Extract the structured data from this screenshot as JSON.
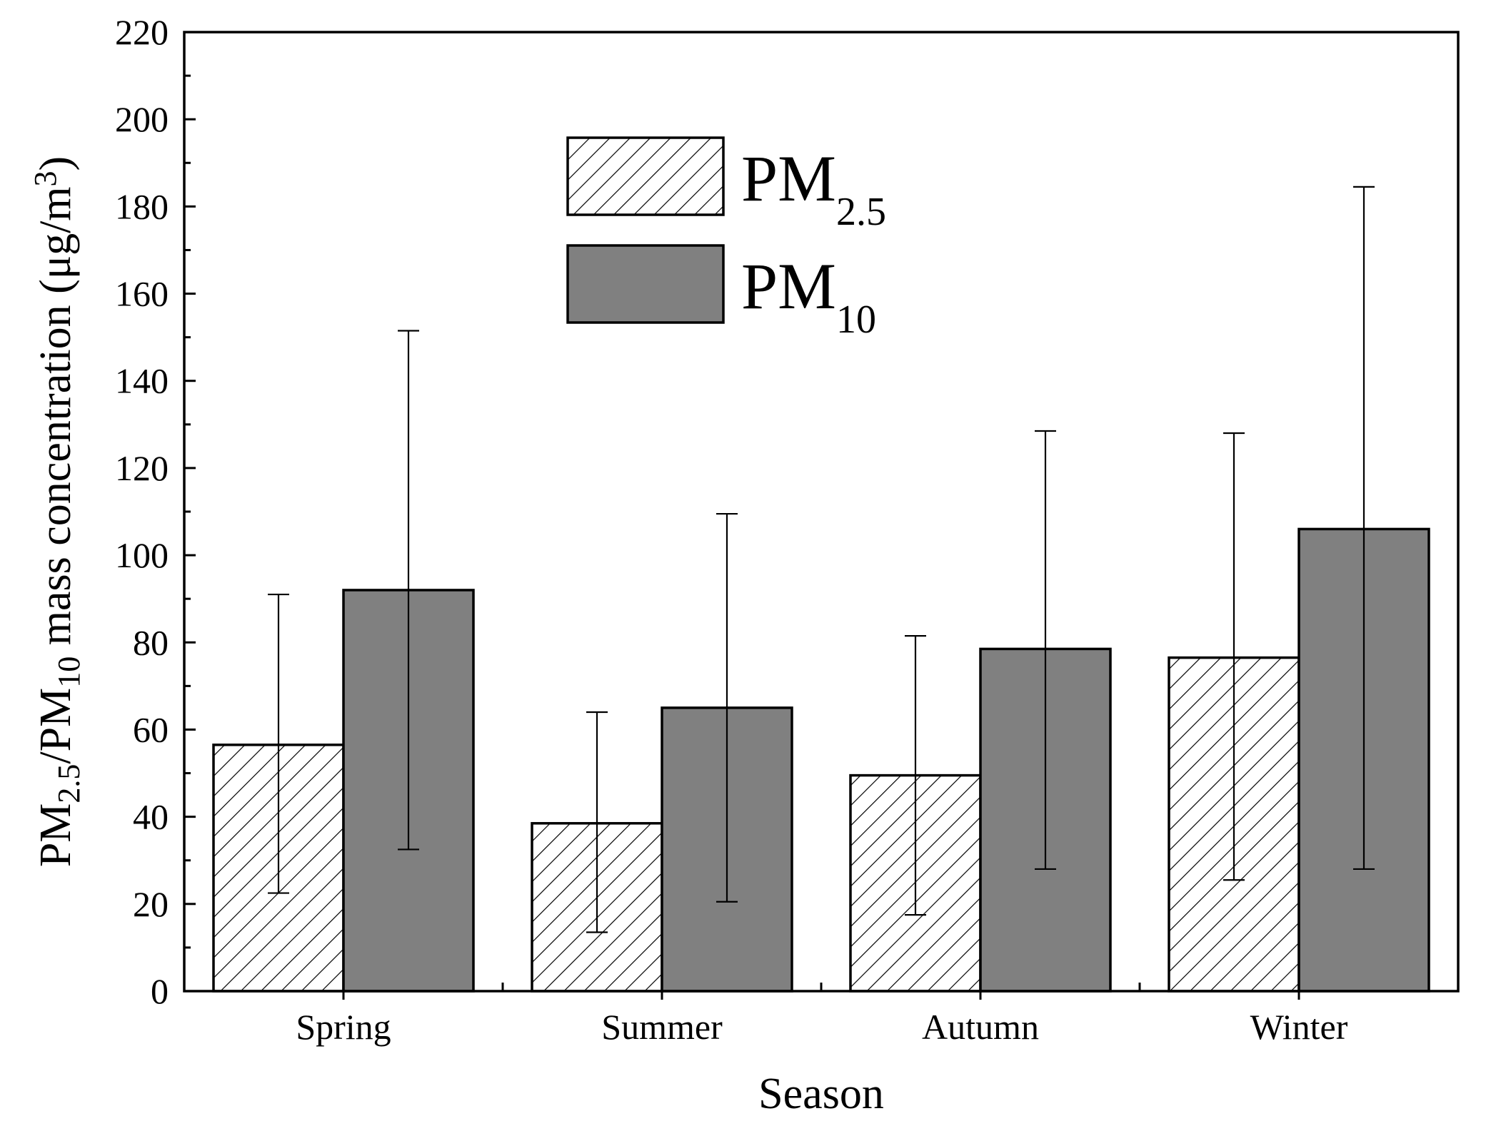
{
  "chart_data": {
    "type": "bar",
    "categories": [
      "Spring",
      "Summer",
      "Autumn",
      "Winter"
    ],
    "series": [
      {
        "name": "PM2.5",
        "legend_main": "PM",
        "legend_sub": "2.5",
        "fill": "hatch",
        "values": [
          56.5,
          38.5,
          49.5,
          76.5
        ],
        "error_low": [
          22.5,
          13.5,
          17.5,
          25.5
        ],
        "error_high": [
          91,
          64,
          81.5,
          128
        ]
      },
      {
        "name": "PM10",
        "legend_main": "PM",
        "legend_sub": "10",
        "fill": "#808080",
        "values": [
          92,
          65,
          78.5,
          106
        ],
        "error_low": [
          32.5,
          20.5,
          28,
          28
        ],
        "error_high": [
          151.5,
          109.5,
          128.5,
          184.5
        ]
      }
    ],
    "xlabel": "Season",
    "ylabel": {
      "parts": [
        {
          "text": "PM",
          "sub": false,
          "sup": false
        },
        {
          "text": "2.5",
          "sub": true,
          "sup": false
        },
        {
          "text": "/PM",
          "sub": false,
          "sup": false
        },
        {
          "text": "10",
          "sub": true,
          "sup": false
        },
        {
          "text": " mass concentration (μg/m",
          "sub": false,
          "sup": false
        },
        {
          "text": "3",
          "sub": false,
          "sup": true
        },
        {
          "text": ")",
          "sub": false,
          "sup": false
        }
      ]
    },
    "ylim": [
      0,
      220
    ],
    "yticks": [
      0,
      20,
      40,
      60,
      80,
      100,
      120,
      140,
      160,
      180,
      200,
      220
    ],
    "legend_position": "top-center",
    "grid": false,
    "colors": {
      "pm25_hatch": "#000000",
      "pm10_fill": "#808080",
      "axis": "#000000"
    }
  }
}
